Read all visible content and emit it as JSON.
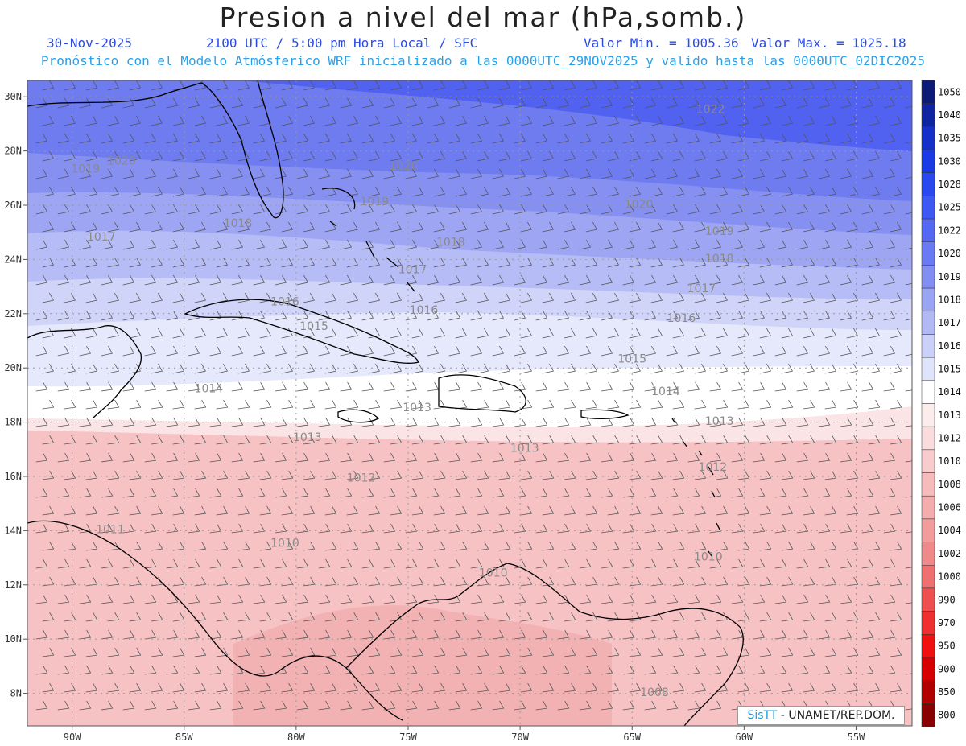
{
  "header": {
    "title": "Presion a nivel del mar (hPa,somb.)",
    "date": "30-Nov-2025",
    "time": "2100 UTC / 5:00 pm Hora Local / SFC",
    "min_value": "Valor Min. = 1005.36",
    "max_value": "Valor Max. = 1025.18",
    "subtitle": "Pronóstico con el Modelo Atmósferico WRF inicializado a las 0000UTC_29NOV2025 y valido hasta las  0000UTC_02DIC2025"
  },
  "axes": {
    "lon_ticks": [
      "90W",
      "85W",
      "80W",
      "75W",
      "70W",
      "65W",
      "60W",
      "55W"
    ],
    "lat_ticks": [
      "30N",
      "28N",
      "26N",
      "24N",
      "22N",
      "20N",
      "18N",
      "16N",
      "14N",
      "12N",
      "10N",
      "8N"
    ],
    "lon_range": [
      -92,
      -52.5
    ],
    "lat_range": [
      6.8,
      30.6
    ]
  },
  "colorbar": {
    "levels": [
      "1050",
      "1040",
      "1035",
      "1030",
      "1028",
      "1025",
      "1022",
      "1020",
      "1019",
      "1018",
      "1017",
      "1016",
      "1015",
      "1014",
      "1013",
      "1012",
      "1010",
      "1008",
      "1006",
      "1004",
      "1002",
      "1000",
      "990",
      "970",
      "950",
      "900",
      "850",
      "800"
    ],
    "colors": [
      "#0c1a78",
      "#0f24a0",
      "#1430c8",
      "#1a3ae6",
      "#2a48f0",
      "#3e58f2",
      "#5468f2",
      "#6a7af2",
      "#828ef2",
      "#9aa4f4",
      "#b2baf6",
      "#cad0f8",
      "#e0e4fa",
      "#ffffff",
      "#fdecec",
      "#fbdcdc",
      "#f8cccc",
      "#f6bcbc",
      "#f4acac",
      "#f29c9c",
      "#f08a8a",
      "#ee7070",
      "#ee5050",
      "#f03030",
      "#f01010",
      "#d60000",
      "#b00000",
      "#880000"
    ]
  },
  "contour_labels": [
    {
      "text": "1022",
      "lon": -61.5,
      "lat": 29.4
    },
    {
      "text": "1020",
      "lon": -87.8,
      "lat": 27.5
    },
    {
      "text": "1020",
      "lon": -75.2,
      "lat": 27.3
    },
    {
      "text": "1020",
      "lon": -64.7,
      "lat": 25.9
    },
    {
      "text": "1019",
      "lon": -89.4,
      "lat": 27.2
    },
    {
      "text": "1019",
      "lon": -76.5,
      "lat": 26.0
    },
    {
      "text": "1019",
      "lon": -61.1,
      "lat": 24.9
    },
    {
      "text": "1018",
      "lon": -82.6,
      "lat": 25.2
    },
    {
      "text": "1018",
      "lon": -73.1,
      "lat": 24.5
    },
    {
      "text": "1018",
      "lon": -61.1,
      "lat": 23.9
    },
    {
      "text": "1017",
      "lon": -88.7,
      "lat": 24.7
    },
    {
      "text": "1017",
      "lon": -74.8,
      "lat": 23.5
    },
    {
      "text": "1017",
      "lon": -61.9,
      "lat": 22.8
    },
    {
      "text": "1016",
      "lon": -80.5,
      "lat": 22.3
    },
    {
      "text": "1016",
      "lon": -74.3,
      "lat": 22.0
    },
    {
      "text": "1016",
      "lon": -62.8,
      "lat": 21.7
    },
    {
      "text": "1015",
      "lon": -79.2,
      "lat": 21.4
    },
    {
      "text": "1015",
      "lon": -65.0,
      "lat": 20.2
    },
    {
      "text": "1014",
      "lon": -83.9,
      "lat": 19.1
    },
    {
      "text": "1014",
      "lon": -63.5,
      "lat": 19.0
    },
    {
      "text": "1013",
      "lon": -74.6,
      "lat": 18.4
    },
    {
      "text": "1013",
      "lon": -79.5,
      "lat": 17.3
    },
    {
      "text": "1013",
      "lon": -69.8,
      "lat": 16.9
    },
    {
      "text": "1013",
      "lon": -61.1,
      "lat": 17.9
    },
    {
      "text": "1012",
      "lon": -77.1,
      "lat": 15.8
    },
    {
      "text": "1012",
      "lon": -61.4,
      "lat": 16.2
    },
    {
      "text": "1011",
      "lon": -88.3,
      "lat": 13.9
    },
    {
      "text": "1010",
      "lon": -80.5,
      "lat": 13.4
    },
    {
      "text": "1010",
      "lon": -71.2,
      "lat": 12.3
    },
    {
      "text": "1010",
      "lon": -61.6,
      "lat": 12.9
    },
    {
      "text": "1008",
      "lon": -64.0,
      "lat": 7.9
    }
  ],
  "footer": {
    "credit_logo": "SisTT",
    "credit_text": " - UNAMET/REP.DOM."
  }
}
